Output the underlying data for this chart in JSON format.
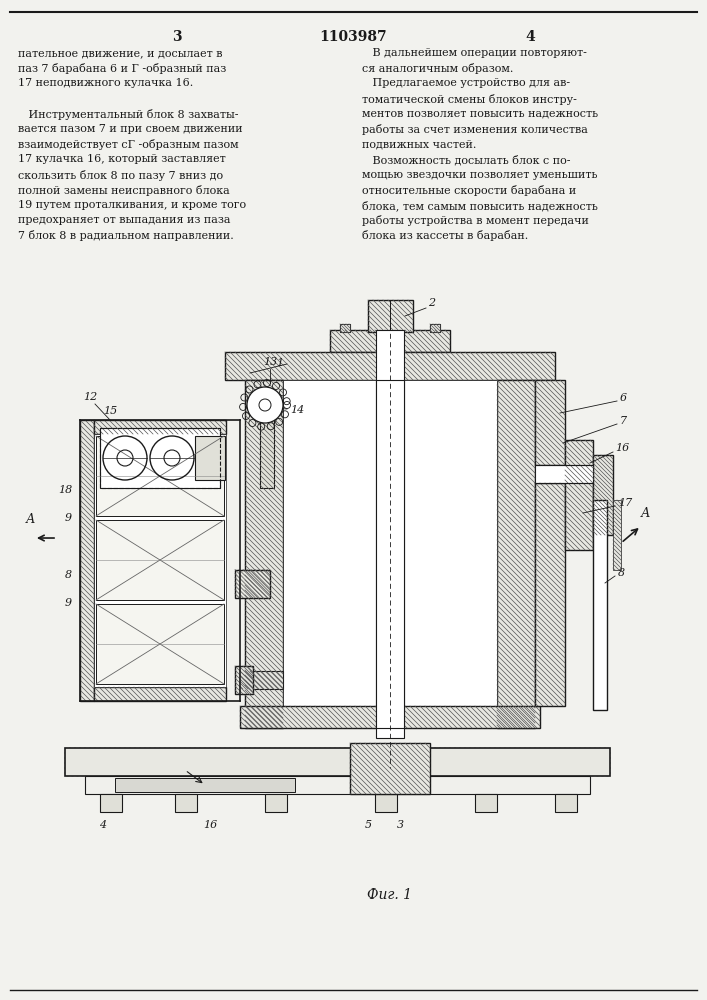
{
  "page_bg": "#f2f2ee",
  "line_color": "#1a1a1a",
  "text_color": "#1a1a1a",
  "page_num_left": "3",
  "page_num_center": "1103987",
  "page_num_right": "4",
  "col1_text": [
    "пательное движение, и досылает в",
    "паз 7 барабана 6 и Г -образный паз",
    "17 неподвижного кулачка 16.",
    "",
    "   Инструментальный блок 8 захваты-",
    "вается пазом 7 и при своем движении",
    "взаимодействует сГ -образным пазом",
    "17 кулачка 16, который заставляет",
    "скользить блок 8 по пазу 7 вниз до",
    "полной замены неисправного блока",
    "19 путем проталкивания, и кроме того",
    "предохраняет от выпадания из паза",
    "7 блок 8 в радиальном направлении."
  ],
  "col2_text": [
    "   В дальнейшем операции повторяют-",
    "ся аналогичным образом.",
    "   Предлагаемое устройство для ав-",
    "томатической смены блоков инстру-",
    "ментов позволяет повысить надежность",
    "работы за счет изменения количества",
    "подвижных частей.",
    "   Возможность досылать блок с по-",
    "мощью звездочки позволяет уменьшить",
    "относительные скорости барабана и",
    "блока, тем самым повысить надежность",
    "работы устройства в момент передачи",
    "блока из кассеты в барабан."
  ],
  "fig_caption": "Фиг. 1"
}
